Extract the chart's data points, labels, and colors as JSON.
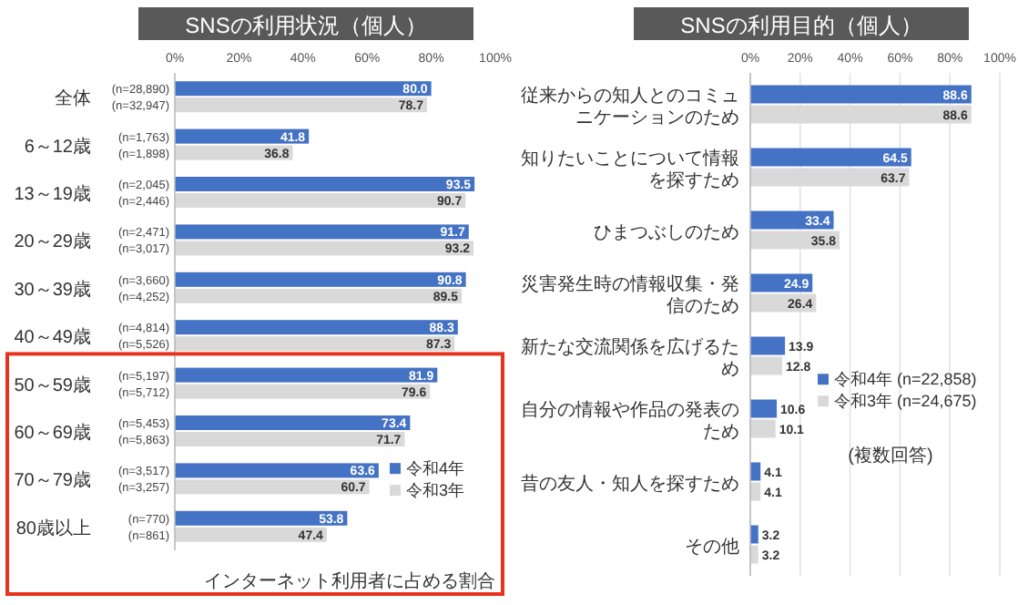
{
  "chart_data": [
    {
      "type": "bar",
      "orientation": "horizontal",
      "title": "SNSの利用状況（個人）",
      "categories": [
        "全体",
        "6～12歳",
        "13～19歳",
        "20～29歳",
        "30～39歳",
        "40～49歳",
        "50～59歳",
        "60～69歳",
        "70～79歳",
        "80歳以上"
      ],
      "series": [
        {
          "name": "令和4年",
          "color": "#4472c4",
          "values": [
            80.0,
            41.8,
            93.5,
            91.7,
            90.8,
            88.3,
            81.9,
            73.4,
            63.6,
            53.8
          ],
          "value_labels": [
            "80.0",
            "41.8",
            "93.5",
            "91.7",
            "90.8",
            "88.3",
            "81.9",
            "73.4",
            "63.6",
            "53.8"
          ]
        },
        {
          "name": "令和3年",
          "color": "#d9d9d9",
          "values": [
            78.7,
            36.8,
            90.7,
            93.2,
            89.5,
            87.3,
            79.6,
            71.7,
            60.7,
            47.4
          ],
          "value_labels": [
            "78.7",
            "36.8",
            "90.7",
            "93.2",
            "89.5",
            "87.3",
            "79.6",
            "71.7",
            "60.7",
            "47.4"
          ]
        }
      ],
      "xlim": [
        0,
        100
      ],
      "xticks": [
        {
          "value": 0,
          "label": "0%"
        },
        {
          "value": 20,
          "label": "20%"
        },
        {
          "value": 40,
          "label": "40%"
        },
        {
          "value": 60,
          "label": "60%"
        },
        {
          "value": 80,
          "label": "80%"
        },
        {
          "value": 100,
          "label": "100%"
        }
      ],
      "grid": false,
      "legend": "bottom right",
      "annotations": [
        "(n=28,890)",
        "(n=32,947)",
        "(n=1,763)",
        "(n=1,898)",
        "(n=2,045)",
        "(n=2,446)",
        "(n=2,471)",
        "(n=3,017)",
        "(n=3,660)",
        "(n=4,252)",
        "(n=4,814)",
        "(n=5,526)",
        "(n=5,197)",
        "(n=5,712)",
        "(n=5,453)",
        "(n=5,863)",
        "(n=3,517)",
        "(n=3,257)",
        "(n=770)",
        "(n=861)",
        "インターネット利用者に占める割合"
      ]
    },
    {
      "type": "bar",
      "orientation": "horizontal",
      "title": "SNSの利用目的（個人）",
      "categories": [
        "従来からの知人とのコミュニケーションのため",
        "知りたいことについて情報を探すため",
        "ひまつぶしのため",
        "災害発生時の情報収集・発信のため",
        "新たな交流関係を広げるため",
        "自分の情報や作品の発表のため",
        "昔の友人・知人を探すため",
        "その他"
      ],
      "series": [
        {
          "name": "令和4年 (n=22,858)",
          "color": "#4472c4",
          "values": [
            88.6,
            64.5,
            33.4,
            24.9,
            13.9,
            10.6,
            4.1,
            3.2
          ],
          "value_labels": [
            "88.6",
            "64.5",
            "33.4",
            "24.9",
            "13.9",
            "10.6",
            "4.1",
            "3.2"
          ]
        },
        {
          "name": "令和3年 (n=24,675)",
          "color": "#d9d9d9",
          "values": [
            88.6,
            63.7,
            35.8,
            26.4,
            12.8,
            10.1,
            4.1,
            3.2
          ],
          "value_labels": [
            "88.6",
            "63.7",
            "35.8",
            "26.4",
            "12.8",
            "10.1",
            "4.1",
            "3.2"
          ]
        }
      ],
      "xlim": [
        0,
        100
      ],
      "xticks": [
        {
          "value": 0,
          "label": "0%"
        },
        {
          "value": 20,
          "label": "20%"
        },
        {
          "value": 40,
          "label": "40%"
        },
        {
          "value": 60,
          "label": "60%"
        },
        {
          "value": 80,
          "label": "80%"
        },
        {
          "value": 100,
          "label": "100%"
        }
      ],
      "grid": "x",
      "legend": "right",
      "annotations": [
        "(複数回答)"
      ]
    }
  ]
}
